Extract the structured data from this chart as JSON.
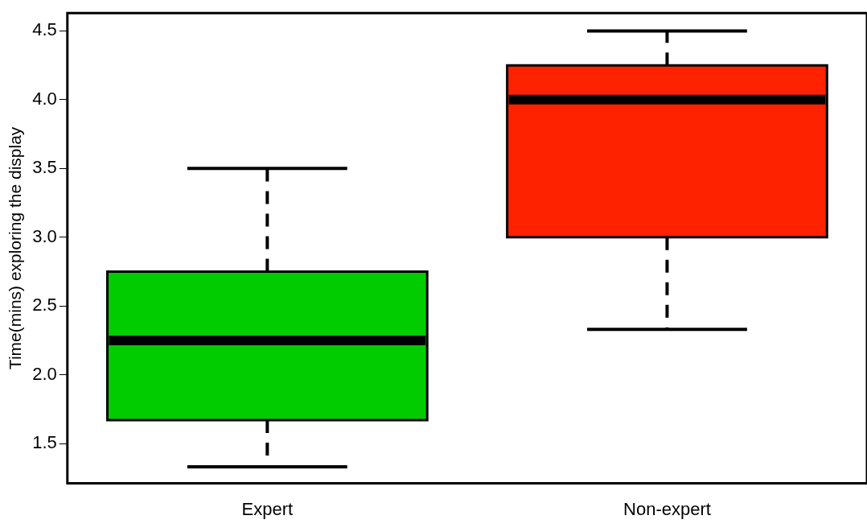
{
  "chart_data": {
    "type": "box",
    "ylabel": "Time(mins) exploring the display",
    "categories": [
      "Expert",
      "Non-expert"
    ],
    "boxes": [
      {
        "low": 1.33,
        "q1": 1.67,
        "median": 2.25,
        "q3": 2.75,
        "high": 3.5
      },
      {
        "low": 2.33,
        "q1": 3.0,
        "median": 4.0,
        "q3": 4.25,
        "high": 4.5
      }
    ],
    "colors": [
      "#00cc00",
      "#ff2200"
    ],
    "ylim": [
      1.21,
      4.63
    ],
    "yticks": [
      1.5,
      {
        "value": 2,
        "label": "2.0"
      },
      2.5,
      {
        "value": 3,
        "label": "3.0"
      },
      3.5,
      {
        "value": 4,
        "label": "4.0"
      },
      4.5
    ],
    "grid": false,
    "legend": false
  }
}
